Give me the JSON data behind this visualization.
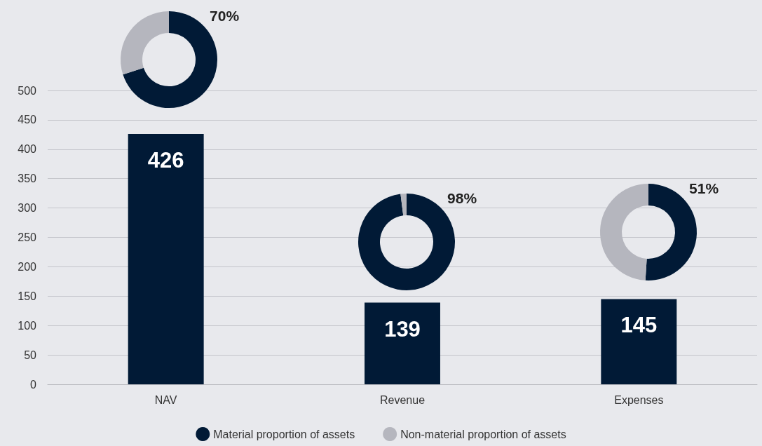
{
  "chart_data": [
    {
      "type": "bar",
      "categories": [
        "NAV",
        "Revenue",
        "Expenses"
      ],
      "values": [
        426,
        139,
        145
      ],
      "color": "#011a36",
      "ylim": [
        0,
        500
      ],
      "yticks": [
        0,
        50,
        100,
        150,
        200,
        250,
        300,
        350,
        400,
        450,
        500
      ],
      "grid": "y",
      "data_labels": true
    },
    {
      "type": "donut",
      "categories": [
        "Material proportion of assets",
        "Non-material proportion of assets"
      ],
      "values": [
        70,
        30
      ],
      "colors": [
        "#011a36",
        "#b5b6be"
      ],
      "value_labels": [
        "70%",
        null
      ],
      "legend": "bottom"
    },
    {
      "type": "donut",
      "categories": [
        null,
        null
      ],
      "values": [
        98,
        2
      ],
      "colors": [
        "#011a36",
        "#b5b6be"
      ],
      "value_labels": [
        "98%",
        null
      ]
    },
    {
      "type": "donut",
      "categories": [
        null,
        null
      ],
      "values": [
        51,
        49
      ],
      "colors": [
        "#011a36",
        "#b5b6be"
      ],
      "value_labels": [
        "51%",
        null
      ]
    }
  ]
}
